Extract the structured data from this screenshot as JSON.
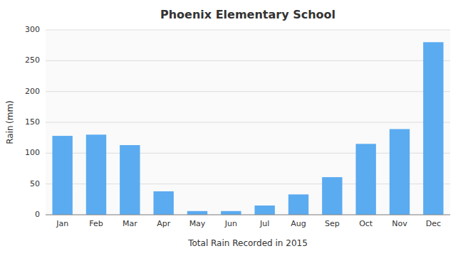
{
  "chart_data": {
    "type": "bar",
    "title": "Phoenix Elementary School",
    "xlabel": "Total Rain Recorded in 2015",
    "ylabel": "Rain (mm)",
    "categories": [
      "Jan",
      "Feb",
      "Mar",
      "Apr",
      "May",
      "Jun",
      "Jul",
      "Aug",
      "Sep",
      "Oct",
      "Nov",
      "Dec"
    ],
    "values": [
      128,
      130,
      113,
      38,
      6,
      6,
      15,
      33,
      61,
      115,
      139,
      280
    ],
    "color": "#5aabf0",
    "ylim": [
      0,
      300
    ],
    "yticks": [
      0,
      50,
      100,
      150,
      200,
      250,
      300
    ],
    "grid": true
  }
}
